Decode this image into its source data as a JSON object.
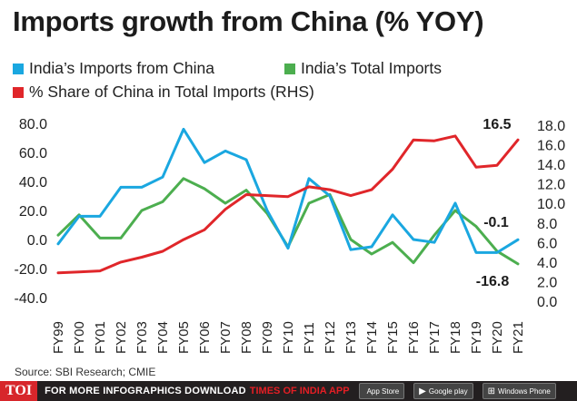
{
  "title": "Imports growth from China (% YOY)",
  "legend": [
    {
      "label": "India’s Imports from China",
      "color": "#1aa7e0"
    },
    {
      "label": "India’s Total Imports",
      "color": "#4cae4f"
    },
    {
      "label": "% Share of China in Total Imports (RHS)",
      "color": "#e0262a"
    }
  ],
  "chart_data": {
    "type": "line",
    "title": "Imports growth from China (% YOY)",
    "categories": [
      "FY99",
      "FY00",
      "FY01",
      "FY02",
      "FY03",
      "FY04",
      "FY05",
      "FY06",
      "FY07",
      "FY08",
      "FY09",
      "FY10",
      "FY11",
      "FY12",
      "FY13",
      "FY14",
      "FY15",
      "FY16",
      "FY17",
      "FY18",
      "FY19",
      "FY20",
      "FY21"
    ],
    "y_left": {
      "ylim": [
        -40,
        80
      ],
      "ticks": [
        "80.0",
        "60.0",
        "40.0",
        "20.0",
        "0.0",
        "-20.0",
        "-40.0"
      ],
      "tick_values": [
        80,
        60,
        40,
        20,
        0,
        -20,
        -40
      ]
    },
    "y_right": {
      "ylim": [
        0,
        18
      ],
      "ticks": [
        "18.0",
        "16.0",
        "14.0",
        "12.0",
        "10.0",
        "8.0",
        "6.0",
        "4.0",
        "2.0",
        "0.0"
      ],
      "tick_values": [
        18,
        16,
        14,
        12,
        10,
        8,
        6,
        4,
        2,
        0
      ]
    },
    "series": [
      {
        "name": "India’s Imports from China",
        "axis": "left",
        "color": "#1aa7e0",
        "values": [
          -3,
          16,
          16,
          36,
          36,
          43,
          76,
          53,
          61,
          55,
          20,
          -6,
          42,
          30,
          -7,
          -5,
          17,
          0,
          -2,
          25,
          -9,
          -9,
          -0.1
        ]
      },
      {
        "name": "India’s Total Imports",
        "axis": "left",
        "color": "#4cae4f",
        "values": [
          3,
          17,
          1,
          1,
          20,
          26,
          42,
          35,
          25,
          34,
          18,
          -5,
          25,
          31,
          0,
          -10,
          -2,
          -16,
          3,
          20,
          9,
          -8,
          -16.8
        ]
      },
      {
        "name": "% Share of China in Total Imports (RHS)",
        "axis": "right",
        "color": "#e0262a",
        "values": [
          2.9,
          3.0,
          3.1,
          4.0,
          4.5,
          5.1,
          6.3,
          7.3,
          9.4,
          10.9,
          10.8,
          10.7,
          11.7,
          11.4,
          10.8,
          11.4,
          13.5,
          16.5,
          16.4,
          16.9,
          13.7,
          13.9,
          16.5
        ]
      }
    ],
    "annotations": [
      {
        "text": "16.5",
        "series": 2,
        "index": 22
      },
      {
        "text": "-0.1",
        "series": 0,
        "index": 22
      },
      {
        "text": "-16.8",
        "series": 1,
        "index": 22
      }
    ]
  },
  "source": "Source: SBI Research; CMIE",
  "footer": {
    "logo": "TOI",
    "text": "FOR MORE  INFOGRAPHICS DOWNLOAD",
    "brand": "TIMES OF INDIA APP",
    "stores": [
      {
        "icon": "apple-icon",
        "glyph": "",
        "label": "App Store"
      },
      {
        "icon": "google-play-icon",
        "glyph": "▶",
        "label": "Google play"
      },
      {
        "icon": "windows-icon",
        "glyph": "⊞",
        "label": "Windows Phone"
      }
    ]
  }
}
